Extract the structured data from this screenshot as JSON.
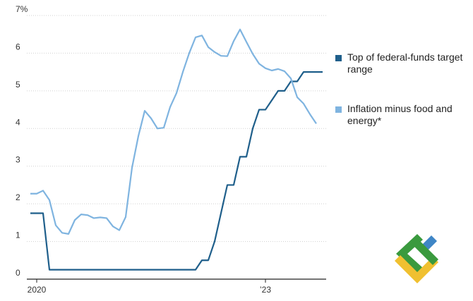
{
  "chart_data": {
    "type": "line",
    "y_unit_label": "7%",
    "ylim": [
      0,
      7
    ],
    "yticks": [
      0,
      1,
      2,
      3,
      4,
      5,
      6,
      7
    ],
    "ytick_labels": [
      "0",
      "1",
      "2",
      "3",
      "4",
      "5",
      "6",
      "7%"
    ],
    "x_range": [
      "2019-12",
      "2023-10"
    ],
    "xtick_labels": [
      {
        "date": "2020-01",
        "label": "2020"
      },
      {
        "date": "2023-01",
        "label": "’23"
      }
    ],
    "grid": true,
    "legend_position": "right",
    "series": [
      {
        "name": "Top of federal-funds target range",
        "color": "#1f5f8b",
        "style": "step",
        "points": [
          [
            "2019-12",
            1.75
          ],
          [
            "2020-02",
            1.75
          ],
          [
            "2020-03",
            0.25
          ],
          [
            "2022-02",
            0.25
          ],
          [
            "2022-03",
            0.5
          ],
          [
            "2022-04",
            0.5
          ],
          [
            "2022-05",
            1.0
          ],
          [
            "2022-06",
            1.75
          ],
          [
            "2022-07",
            2.5
          ],
          [
            "2022-08",
            2.5
          ],
          [
            "2022-09",
            3.25
          ],
          [
            "2022-10",
            3.25
          ],
          [
            "2022-11",
            4.0
          ],
          [
            "2022-12",
            4.5
          ],
          [
            "2023-01",
            4.5
          ],
          [
            "2023-02",
            4.75
          ],
          [
            "2023-03",
            5.0
          ],
          [
            "2023-04",
            5.0
          ],
          [
            "2023-05",
            5.25
          ],
          [
            "2023-06",
            5.25
          ],
          [
            "2023-07",
            5.5
          ],
          [
            "2023-10",
            5.5
          ]
        ]
      },
      {
        "name": "Inflation minus food and energy*",
        "color": "#7fb4e0",
        "style": "line",
        "points": [
          [
            "2019-12",
            2.27
          ],
          [
            "2020-01",
            2.27
          ],
          [
            "2020-02",
            2.35
          ],
          [
            "2020-03",
            2.1
          ],
          [
            "2020-04",
            1.43
          ],
          [
            "2020-05",
            1.23
          ],
          [
            "2020-06",
            1.2
          ],
          [
            "2020-07",
            1.57
          ],
          [
            "2020-08",
            1.72
          ],
          [
            "2020-09",
            1.7
          ],
          [
            "2020-10",
            1.62
          ],
          [
            "2020-11",
            1.64
          ],
          [
            "2020-12",
            1.62
          ],
          [
            "2021-01",
            1.4
          ],
          [
            "2021-02",
            1.3
          ],
          [
            "2021-03",
            1.65
          ],
          [
            "2021-04",
            2.96
          ],
          [
            "2021-05",
            3.8
          ],
          [
            "2021-06",
            4.47
          ],
          [
            "2021-07",
            4.27
          ],
          [
            "2021-08",
            4.0
          ],
          [
            "2021-09",
            4.02
          ],
          [
            "2021-10",
            4.57
          ],
          [
            "2021-11",
            4.94
          ],
          [
            "2021-12",
            5.5
          ],
          [
            "2022-01",
            6.0
          ],
          [
            "2022-02",
            6.42
          ],
          [
            "2022-03",
            6.47
          ],
          [
            "2022-04",
            6.16
          ],
          [
            "2022-05",
            6.03
          ],
          [
            "2022-06",
            5.93
          ],
          [
            "2022-07",
            5.92
          ],
          [
            "2022-08",
            6.32
          ],
          [
            "2022-09",
            6.63
          ],
          [
            "2022-10",
            6.3
          ],
          [
            "2022-11",
            5.98
          ],
          [
            "2022-12",
            5.72
          ],
          [
            "2023-01",
            5.6
          ],
          [
            "2023-02",
            5.54
          ],
          [
            "2023-03",
            5.58
          ],
          [
            "2023-04",
            5.52
          ],
          [
            "2023-05",
            5.33
          ],
          [
            "2023-06",
            4.83
          ],
          [
            "2023-07",
            4.66
          ],
          [
            "2023-08",
            4.38
          ],
          [
            "2023-09",
            4.13
          ]
        ]
      }
    ]
  },
  "legend": {
    "items": [
      {
        "label": "Top of federal-funds target range",
        "color": "#1f5f8b"
      },
      {
        "label": "Inflation minus food and energy*",
        "color": "#7fb4e0"
      }
    ]
  },
  "logo": {
    "name": "brand-logo",
    "colors": {
      "green": "#3a9a3e",
      "blue": "#3f86c6",
      "yellow": "#f0c030"
    }
  }
}
